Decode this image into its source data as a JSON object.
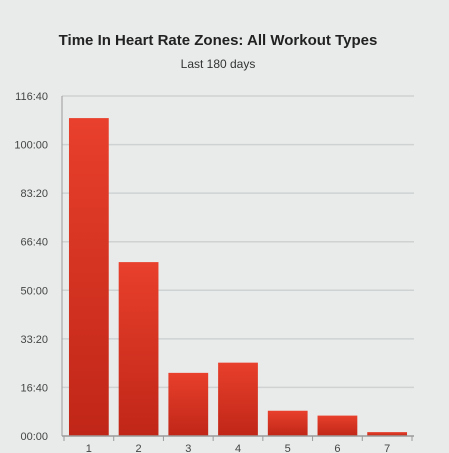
{
  "chart_data": {
    "type": "bar",
    "title": "Time In Heart Rate Zones: All Workout Types",
    "subtitle": "Last 180 days",
    "xlabel": "",
    "ylabel": "",
    "categories": [
      "1",
      "2",
      "3",
      "4",
      "5",
      "6",
      "7"
    ],
    "values": [
      6545,
      3580,
      1300,
      1510,
      520,
      420,
      80
    ],
    "value_unit": "seconds (displayed as mm:ss on axis)",
    "ylim": [
      0,
      7000
    ],
    "yticks": [
      0,
      1000,
      2000,
      3000,
      4000,
      5000,
      6000,
      7000
    ],
    "ytick_labels": [
      "00:00",
      "16:40",
      "33:20",
      "50:00",
      "66:40",
      "83:20",
      "100:00",
      "116:40"
    ],
    "grid": true,
    "legend": "none",
    "bar_color_top": "#e8402c",
    "bar_color_bottom": "#c02617",
    "grid_color": "#cfd2d2",
    "axis_color": "#9a9a9a"
  }
}
